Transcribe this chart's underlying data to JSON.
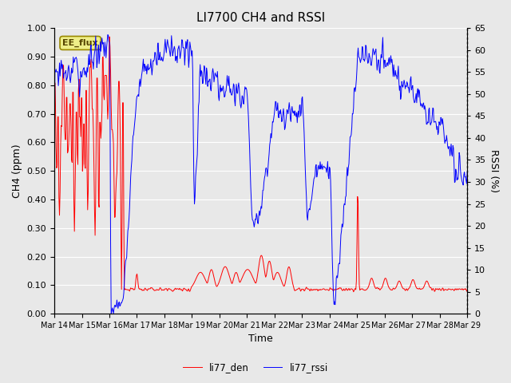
{
  "title": "LI7700 CH4 and RSSI",
  "xlabel": "Time",
  "ylabel_left": "CH4 (ppm)",
  "ylabel_right": "RSSI (%)",
  "ylim_left": [
    0.0,
    1.0
  ],
  "ylim_right": [
    0,
    65
  ],
  "yticks_left": [
    0.0,
    0.1,
    0.2,
    0.3,
    0.4,
    0.5,
    0.6,
    0.7,
    0.8,
    0.9,
    1.0
  ],
  "yticks_right": [
    0,
    5,
    10,
    15,
    20,
    25,
    30,
    35,
    40,
    45,
    50,
    55,
    60,
    65
  ],
  "xtick_labels": [
    "Mar 14",
    "Mar 15",
    "Mar 16",
    "Mar 17",
    "Mar 18",
    "Mar 19",
    "Mar 20",
    "Mar 21",
    "Mar 22",
    "Mar 23",
    "Mar 24",
    "Mar 25",
    "Mar 26",
    "Mar 27",
    "Mar 28",
    "Mar 29"
  ],
  "color_red": "#ff0000",
  "color_blue": "#0000ff",
  "background_color": "#e8e8e8",
  "fig_background": "#e8e8e8",
  "legend_label_red": "li77_den",
  "legend_label_blue": "li77_rssi",
  "annotation_text": "EE_flux",
  "title_fontsize": 11,
  "axis_fontsize": 9,
  "tick_fontsize": 8
}
